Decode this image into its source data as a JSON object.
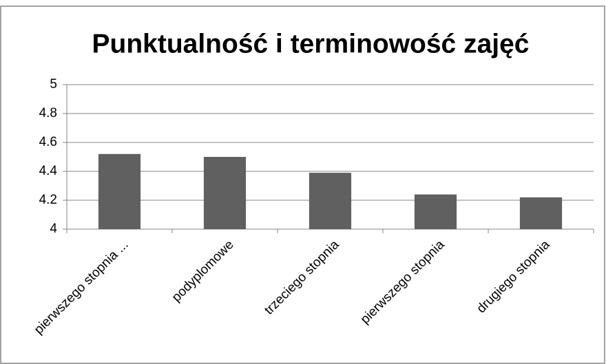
{
  "chart_data": {
    "type": "bar",
    "title": "Punktualność i terminowość zajęć",
    "categories": [
      "pierwszego stopnia ...",
      "podyplomowe",
      "trzeciego stopnia",
      "pierwszego stopnia",
      "drugiego stopnia"
    ],
    "values": [
      4.52,
      4.5,
      4.39,
      4.24,
      4.22
    ],
    "color": "#606060",
    "ylim": [
      4,
      5
    ],
    "yticks": [
      4,
      4.2,
      4.4,
      4.6,
      4.8,
      5
    ],
    "grid": true
  }
}
